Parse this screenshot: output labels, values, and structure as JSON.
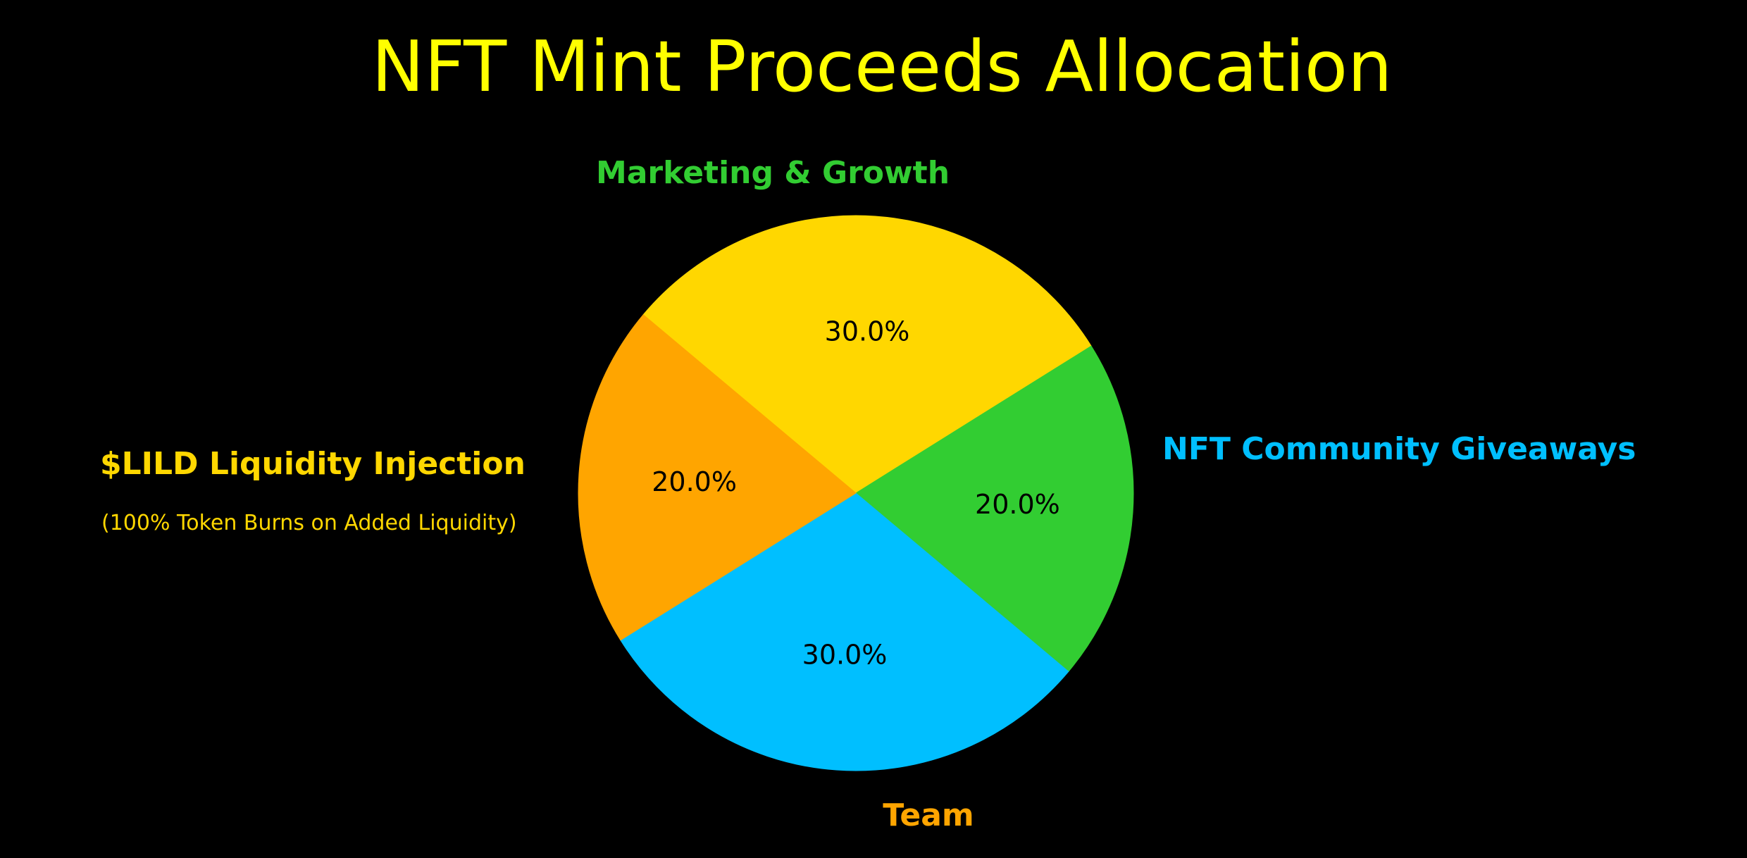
{
  "chart_data": {
    "type": "pie",
    "title": "NFT Mint Proceeds Allocation",
    "title_color": "#FFFF00",
    "background": "#000000",
    "start_angle_deg": 140,
    "direction": "clockwise",
    "slices": [
      {
        "label": "$LILD Liquidity Injection",
        "sublabel": "(100% Token Burns on Added Liquidity)",
        "value": 30,
        "percent_label": "30.0%",
        "color": "#FFD700"
      },
      {
        "label": "Marketing & Growth",
        "sublabel": "",
        "value": 20,
        "percent_label": "20.0%",
        "color": "#32CD32"
      },
      {
        "label": "NFT Community Giveaways",
        "sublabel": "",
        "value": 30,
        "percent_label": "30.0%",
        "color": "#00BFFF"
      },
      {
        "label": "Team",
        "sublabel": "",
        "value": 20,
        "percent_label": "20.0%",
        "color": "#FFA500"
      }
    ]
  }
}
